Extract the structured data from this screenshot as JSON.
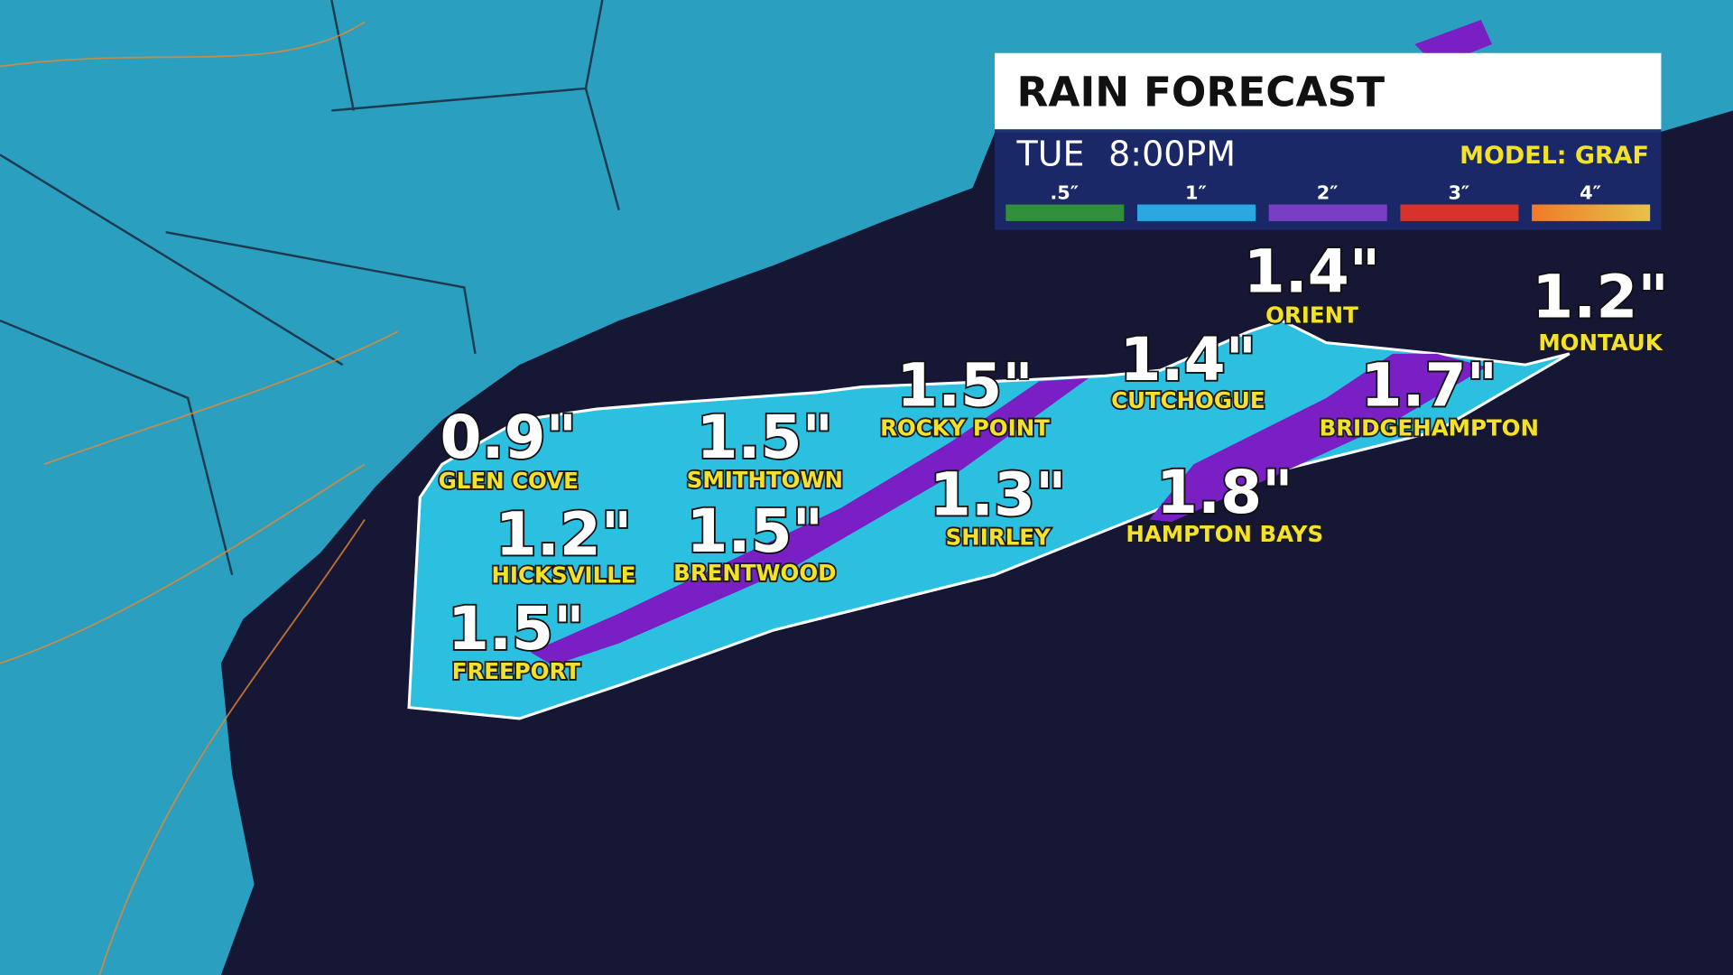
{
  "header": {
    "title": "RAIN FORECAST",
    "day": "TUE",
    "time": "8:00PM",
    "model": "MODEL: GRAF"
  },
  "legend": [
    ".5″",
    "1″",
    "2″",
    "3″",
    "4″"
  ],
  "locations": [
    {
      "amount": "0.9\"",
      "name": "GLEN COVE"
    },
    {
      "amount": "1.5\"",
      "name": "SMITHTOWN"
    },
    {
      "amount": "1.5\"",
      "name": "ROCKY POINT"
    },
    {
      "amount": "1.4\"",
      "name": "CUTCHOGUE"
    },
    {
      "amount": "1.4\"",
      "name": "ORIENT"
    },
    {
      "amount": "1.2\"",
      "name": "MONTAUK"
    },
    {
      "amount": "1.7\"",
      "name": "BRIDGEHAMPTON"
    },
    {
      "amount": "1.8\"",
      "name": "HAMPTON BAYS"
    },
    {
      "amount": "1.3\"",
      "name": "SHIRLEY"
    },
    {
      "amount": "1.5\"",
      "name": "BRENTWOOD"
    },
    {
      "amount": "1.2\"",
      "name": "HICKSVILLE"
    },
    {
      "amount": "1.5\"",
      "name": "FREEPORT"
    }
  ]
}
